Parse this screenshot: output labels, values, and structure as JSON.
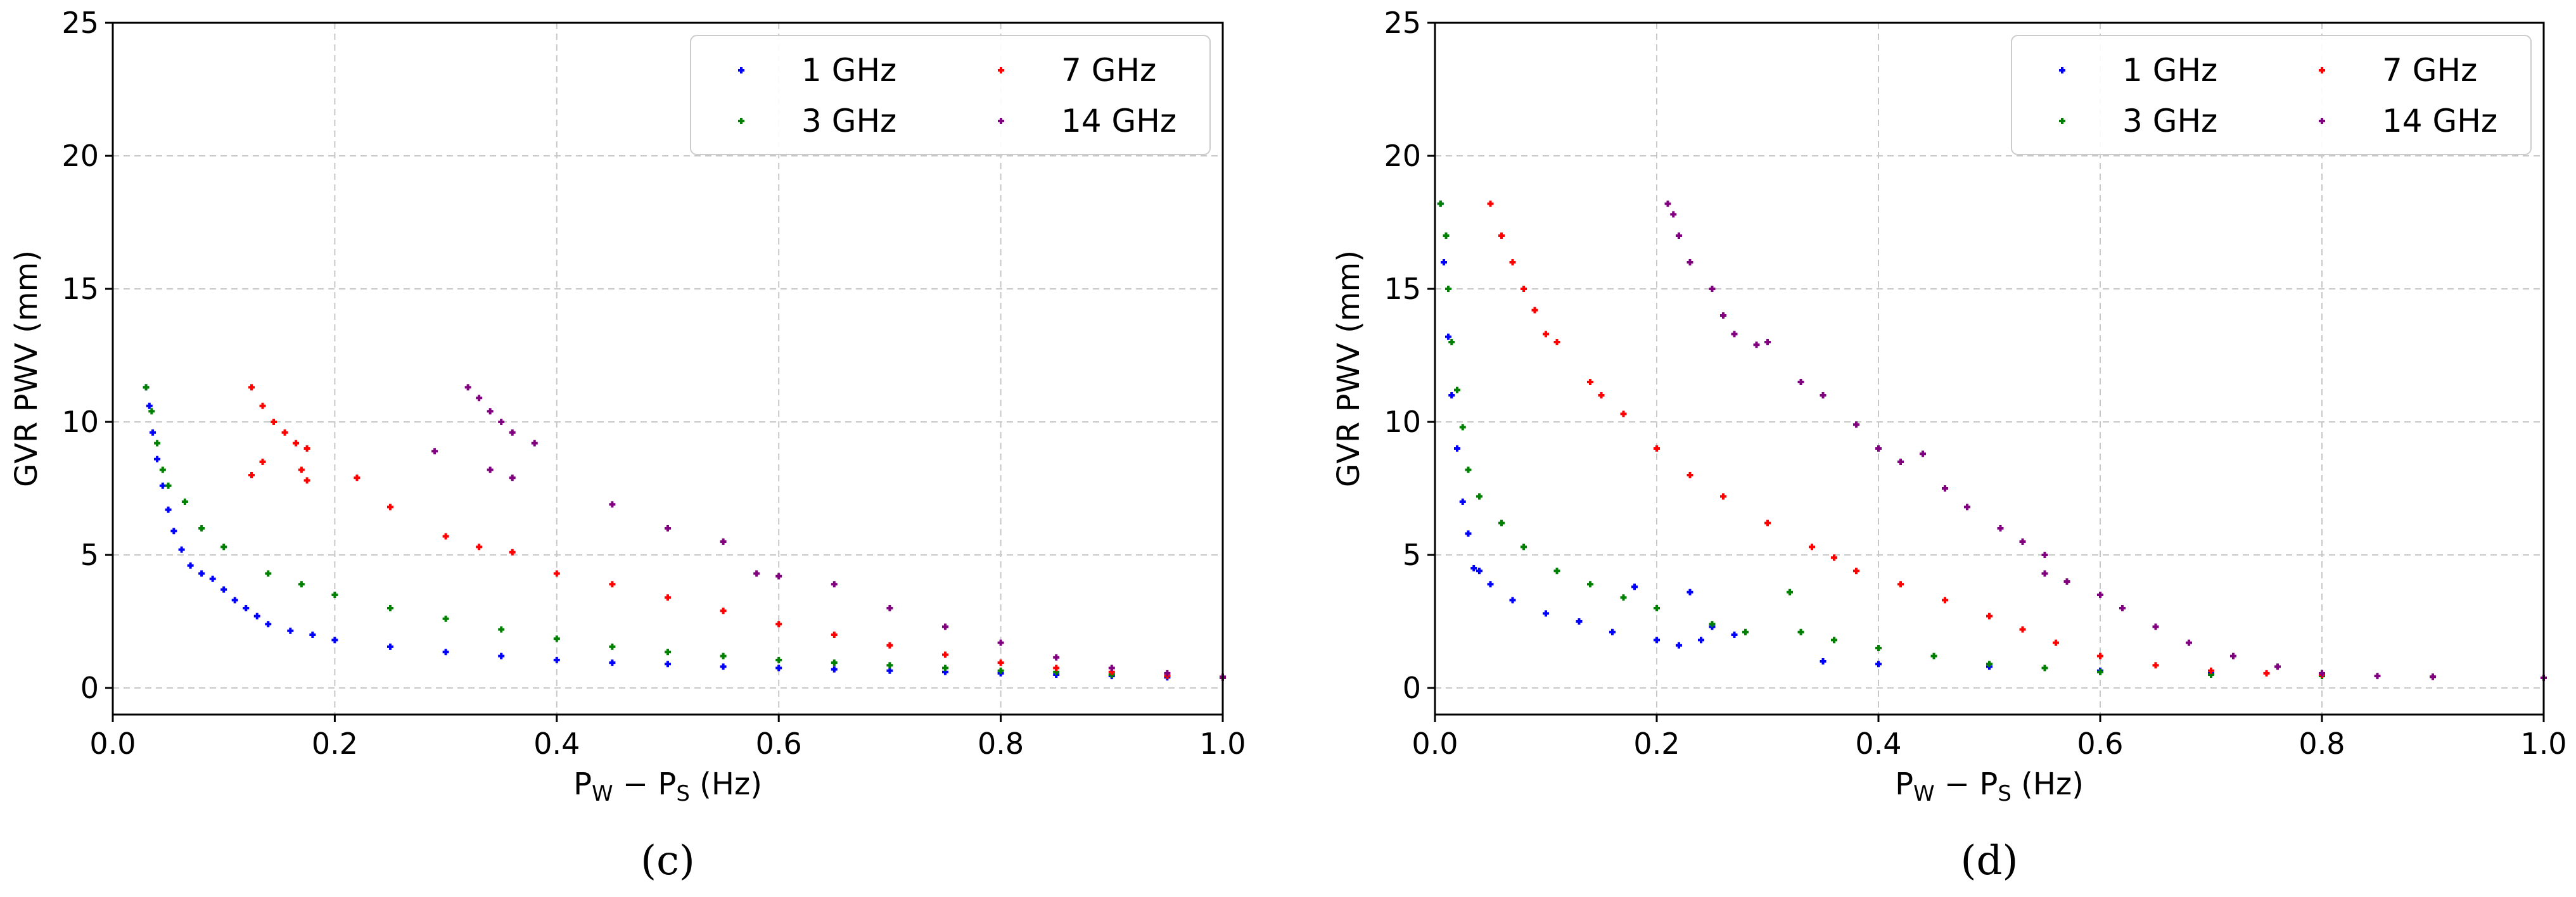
{
  "chart_data": [
    {
      "type": "scatter",
      "panel_label": "(c)",
      "xlabel": "P_W − P_S (Hz)",
      "xlabel_parts": {
        "p1": "P",
        "s1": "W",
        "mid": " − P",
        "s2": "S",
        "unit": " (Hz)"
      },
      "ylabel": "GVR PWV (mm)",
      "xlim": [
        0.0,
        1.0
      ],
      "ylim": [
        -1,
        25
      ],
      "xticks": [
        "0.0",
        "0.2",
        "0.4",
        "0.6",
        "0.8",
        "1.0"
      ],
      "yticks": [
        "0",
        "5",
        "10",
        "15",
        "20",
        "25"
      ],
      "grid": true,
      "legend_position": "top-right",
      "legend": [
        "1 GHz",
        "3 GHz",
        "7 GHz",
        "14 GHz"
      ],
      "series": [
        {
          "name": "1 GHz",
          "color": "#0000ff",
          "points": [
            [
              0.03,
              11.3
            ],
            [
              0.033,
              10.6
            ],
            [
              0.036,
              9.6
            ],
            [
              0.04,
              8.6
            ],
            [
              0.045,
              7.6
            ],
            [
              0.05,
              6.7
            ],
            [
              0.055,
              5.9
            ],
            [
              0.062,
              5.2
            ],
            [
              0.07,
              4.6
            ],
            [
              0.08,
              4.3
            ],
            [
              0.09,
              4.1
            ],
            [
              0.1,
              3.7
            ],
            [
              0.11,
              3.3
            ],
            [
              0.12,
              3.0
            ],
            [
              0.13,
              2.7
            ],
            [
              0.14,
              2.4
            ],
            [
              0.16,
              2.15
            ],
            [
              0.18,
              2.0
            ],
            [
              0.2,
              1.8
            ],
            [
              0.25,
              1.55
            ],
            [
              0.3,
              1.35
            ],
            [
              0.35,
              1.2
            ],
            [
              0.4,
              1.05
            ],
            [
              0.45,
              0.95
            ],
            [
              0.5,
              0.9
            ],
            [
              0.55,
              0.8
            ],
            [
              0.6,
              0.75
            ],
            [
              0.65,
              0.7
            ],
            [
              0.7,
              0.65
            ],
            [
              0.75,
              0.6
            ],
            [
              0.8,
              0.55
            ],
            [
              0.85,
              0.5
            ],
            [
              0.9,
              0.45
            ],
            [
              0.95,
              0.4
            ],
            [
              1.0,
              0.38
            ]
          ]
        },
        {
          "name": "3 GHz",
          "color": "#008000",
          "points": [
            [
              0.03,
              11.3
            ],
            [
              0.035,
              10.4
            ],
            [
              0.04,
              9.2
            ],
            [
              0.045,
              8.2
            ],
            [
              0.05,
              7.6
            ],
            [
              0.065,
              7.0
            ],
            [
              0.08,
              6.0
            ],
            [
              0.1,
              5.3
            ],
            [
              0.14,
              4.3
            ],
            [
              0.17,
              3.9
            ],
            [
              0.2,
              3.5
            ],
            [
              0.25,
              3.0
            ],
            [
              0.3,
              2.6
            ],
            [
              0.35,
              2.2
            ],
            [
              0.4,
              1.85
            ],
            [
              0.45,
              1.55
            ],
            [
              0.5,
              1.35
            ],
            [
              0.55,
              1.2
            ],
            [
              0.6,
              1.05
            ],
            [
              0.65,
              0.95
            ],
            [
              0.7,
              0.85
            ],
            [
              0.75,
              0.75
            ],
            [
              0.8,
              0.65
            ],
            [
              0.85,
              0.6
            ],
            [
              0.9,
              0.5
            ],
            [
              0.95,
              0.45
            ],
            [
              1.0,
              0.4
            ]
          ]
        },
        {
          "name": "7 GHz",
          "color": "#ff0000",
          "points": [
            [
              0.125,
              11.3
            ],
            [
              0.135,
              10.6
            ],
            [
              0.145,
              10.0
            ],
            [
              0.155,
              9.6
            ],
            [
              0.165,
              9.2
            ],
            [
              0.175,
              9.0
            ],
            [
              0.125,
              8.0
            ],
            [
              0.135,
              8.5
            ],
            [
              0.17,
              8.2
            ],
            [
              0.175,
              7.8
            ],
            [
              0.22,
              7.9
            ],
            [
              0.25,
              6.8
            ],
            [
              0.3,
              5.7
            ],
            [
              0.33,
              5.3
            ],
            [
              0.36,
              5.1
            ],
            [
              0.4,
              4.3
            ],
            [
              0.45,
              3.9
            ],
            [
              0.5,
              3.4
            ],
            [
              0.55,
              2.9
            ],
            [
              0.6,
              2.4
            ],
            [
              0.65,
              2.0
            ],
            [
              0.7,
              1.6
            ],
            [
              0.75,
              1.25
            ],
            [
              0.8,
              0.95
            ],
            [
              0.85,
              0.75
            ],
            [
              0.9,
              0.6
            ],
            [
              0.95,
              0.45
            ],
            [
              1.0,
              0.4
            ]
          ]
        },
        {
          "name": "14 GHz",
          "color": "#800080",
          "points": [
            [
              0.32,
              11.3
            ],
            [
              0.33,
              10.9
            ],
            [
              0.34,
              10.4
            ],
            [
              0.35,
              10.0
            ],
            [
              0.36,
              9.6
            ],
            [
              0.38,
              9.2
            ],
            [
              0.29,
              8.9
            ],
            [
              0.34,
              8.2
            ],
            [
              0.36,
              7.9
            ],
            [
              0.45,
              6.9
            ],
            [
              0.5,
              6.0
            ],
            [
              0.55,
              5.5
            ],
            [
              0.58,
              4.3
            ],
            [
              0.6,
              4.2
            ],
            [
              0.65,
              3.9
            ],
            [
              0.7,
              3.0
            ],
            [
              0.75,
              2.3
            ],
            [
              0.8,
              1.7
            ],
            [
              0.85,
              1.15
            ],
            [
              0.9,
              0.75
            ],
            [
              0.95,
              0.55
            ],
            [
              1.0,
              0.42
            ]
          ]
        }
      ]
    },
    {
      "type": "scatter",
      "panel_label": "(d)",
      "xlabel": "P_W − P_S (Hz)",
      "xlabel_parts": {
        "p1": "P",
        "s1": "W",
        "mid": " − P",
        "s2": "S",
        "unit": " (Hz)"
      },
      "ylabel": "GVR PWV (mm)",
      "xlim": [
        0.0,
        1.0
      ],
      "ylim": [
        -1,
        25
      ],
      "xticks": [
        "0.0",
        "0.2",
        "0.4",
        "0.6",
        "0.8",
        "1.0"
      ],
      "yticks": [
        "0",
        "5",
        "10",
        "15",
        "20",
        "25"
      ],
      "grid": true,
      "legend_position": "top-right",
      "legend": [
        "1 GHz",
        "3 GHz",
        "7 GHz",
        "14 GHz"
      ],
      "series": [
        {
          "name": "1 GHz",
          "color": "#0000ff",
          "points": [
            [
              0.005,
              18.2
            ],
            [
              0.008,
              16.0
            ],
            [
              0.012,
              13.2
            ],
            [
              0.015,
              11.0
            ],
            [
              0.02,
              9.0
            ],
            [
              0.025,
              7.0
            ],
            [
              0.03,
              5.8
            ],
            [
              0.035,
              4.5
            ],
            [
              0.04,
              4.4
            ],
            [
              0.05,
              3.9
            ],
            [
              0.07,
              3.3
            ],
            [
              0.1,
              2.8
            ],
            [
              0.13,
              2.5
            ],
            [
              0.16,
              2.1
            ],
            [
              0.2,
              1.8
            ],
            [
              0.22,
              1.6
            ],
            [
              0.24,
              1.8
            ],
            [
              0.25,
              2.3
            ],
            [
              0.23,
              3.6
            ],
            [
              0.18,
              3.8
            ],
            [
              0.27,
              2.0
            ],
            [
              0.35,
              1.0
            ],
            [
              0.4,
              0.9
            ],
            [
              0.5,
              0.8
            ],
            [
              0.6,
              0.65
            ],
            [
              0.7,
              0.55
            ],
            [
              0.8,
              0.5
            ],
            [
              0.9,
              0.42
            ],
            [
              1.0,
              0.38
            ]
          ]
        },
        {
          "name": "3 GHz",
          "color": "#008000",
          "points": [
            [
              0.005,
              18.2
            ],
            [
              0.01,
              17.0
            ],
            [
              0.012,
              15.0
            ],
            [
              0.015,
              13.0
            ],
            [
              0.02,
              11.2
            ],
            [
              0.025,
              9.8
            ],
            [
              0.03,
              8.2
            ],
            [
              0.04,
              7.2
            ],
            [
              0.06,
              6.2
            ],
            [
              0.08,
              5.3
            ],
            [
              0.11,
              4.4
            ],
            [
              0.14,
              3.9
            ],
            [
              0.17,
              3.4
            ],
            [
              0.2,
              3.0
            ],
            [
              0.25,
              2.4
            ],
            [
              0.28,
              2.1
            ],
            [
              0.32,
              3.6
            ],
            [
              0.33,
              2.1
            ],
            [
              0.36,
              1.8
            ],
            [
              0.4,
              1.5
            ],
            [
              0.45,
              1.2
            ],
            [
              0.5,
              0.9
            ],
            [
              0.55,
              0.75
            ],
            [
              0.6,
              0.6
            ],
            [
              0.7,
              0.5
            ],
            [
              0.8,
              0.45
            ],
            [
              0.9,
              0.42
            ],
            [
              1.0,
              0.38
            ]
          ]
        },
        {
          "name": "7 GHz",
          "color": "#ff0000",
          "points": [
            [
              0.05,
              18.2
            ],
            [
              0.06,
              17.0
            ],
            [
              0.07,
              16.0
            ],
            [
              0.08,
              15.0
            ],
            [
              0.09,
              14.2
            ],
            [
              0.1,
              13.3
            ],
            [
              0.11,
              13.0
            ],
            [
              0.14,
              11.5
            ],
            [
              0.15,
              11.0
            ],
            [
              0.17,
              10.3
            ],
            [
              0.2,
              9.0
            ],
            [
              0.23,
              8.0
            ],
            [
              0.26,
              7.2
            ],
            [
              0.3,
              6.2
            ],
            [
              0.34,
              5.3
            ],
            [
              0.36,
              4.9
            ],
            [
              0.38,
              4.4
            ],
            [
              0.42,
              3.9
            ],
            [
              0.46,
              3.3
            ],
            [
              0.5,
              2.7
            ],
            [
              0.53,
              2.2
            ],
            [
              0.56,
              1.7
            ],
            [
              0.6,
              1.2
            ],
            [
              0.65,
              0.85
            ],
            [
              0.7,
              0.65
            ],
            [
              0.75,
              0.55
            ],
            [
              0.8,
              0.5
            ],
            [
              0.9,
              0.42
            ],
            [
              1.0,
              0.38
            ]
          ]
        },
        {
          "name": "14 GHz",
          "color": "#800080",
          "points": [
            [
              0.21,
              18.2
            ],
            [
              0.215,
              17.8
            ],
            [
              0.22,
              17.0
            ],
            [
              0.23,
              16.0
            ],
            [
              0.25,
              15.0
            ],
            [
              0.26,
              14.0
            ],
            [
              0.27,
              13.3
            ],
            [
              0.29,
              12.9
            ],
            [
              0.3,
              13.0
            ],
            [
              0.33,
              11.5
            ],
            [
              0.35,
              11.0
            ],
            [
              0.38,
              9.9
            ],
            [
              0.4,
              9.0
            ],
            [
              0.42,
              8.5
            ],
            [
              0.44,
              8.8
            ],
            [
              0.46,
              7.5
            ],
            [
              0.48,
              6.8
            ],
            [
              0.51,
              6.0
            ],
            [
              0.53,
              5.5
            ],
            [
              0.55,
              5.0
            ],
            [
              0.55,
              4.3
            ],
            [
              0.57,
              4.0
            ],
            [
              0.6,
              3.5
            ],
            [
              0.62,
              3.0
            ],
            [
              0.65,
              2.3
            ],
            [
              0.68,
              1.7
            ],
            [
              0.72,
              1.2
            ],
            [
              0.76,
              0.8
            ],
            [
              0.8,
              0.55
            ],
            [
              0.85,
              0.45
            ],
            [
              0.9,
              0.42
            ],
            [
              1.0,
              0.38
            ]
          ]
        }
      ]
    }
  ]
}
